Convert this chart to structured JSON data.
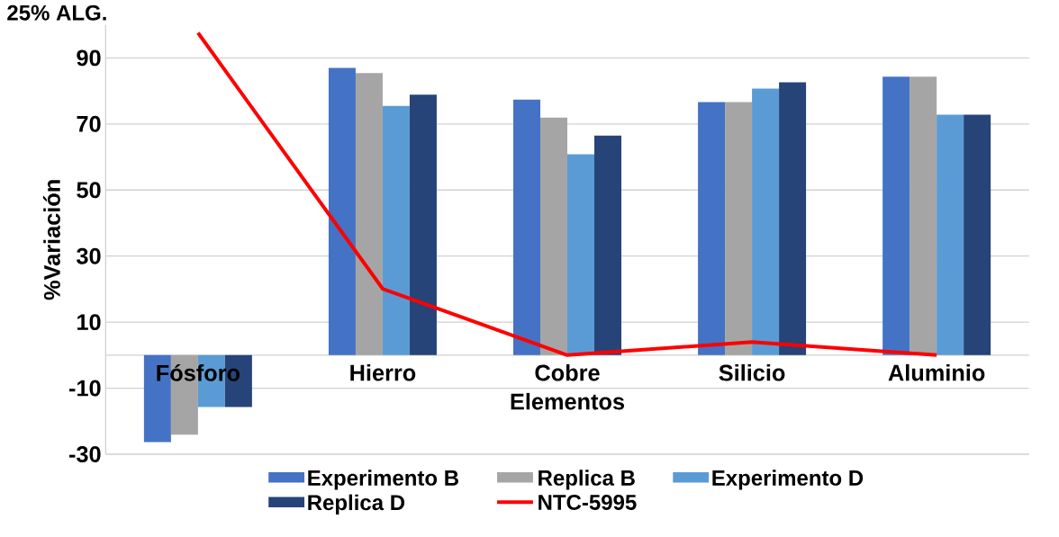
{
  "chart_data": {
    "type": "bar",
    "title": "25% ALG.",
    "xlabel": "Elementos",
    "ylabel": "%Variación",
    "categories": [
      "Fósforo",
      "Hierro",
      "Cobre",
      "Silicio",
      "Aluminio"
    ],
    "series": [
      {
        "name": "Experimento B",
        "color": "#4472c4",
        "values": [
          -26.3,
          87.0,
          77.4,
          76.6,
          84.3
        ]
      },
      {
        "name": "Replica B",
        "color": "#a5a5a5",
        "values": [
          -24.1,
          85.4,
          71.9,
          76.6,
          84.3
        ]
      },
      {
        "name": "Experimento D",
        "color": "#5b9bd5",
        "values": [
          -15.7,
          75.5,
          60.8,
          80.7,
          72.8
        ]
      },
      {
        "name": "Replica D",
        "color": "#264478",
        "values": [
          -15.7,
          78.9,
          66.5,
          82.6,
          72.8
        ]
      },
      {
        "name": "NTC-5995",
        "color": "#ff0000",
        "type": "line",
        "values": [
          97.6,
          20.1,
          0,
          4,
          0
        ]
      }
    ],
    "ylim": [
      -30,
      100
    ],
    "yticks": [
      -30,
      -10,
      10,
      30,
      50,
      70,
      90
    ],
    "grid": "y",
    "legend": "bottom"
  }
}
